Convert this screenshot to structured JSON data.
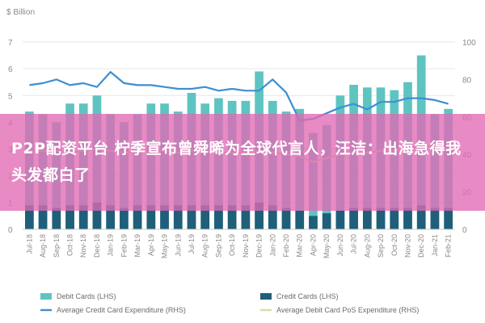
{
  "chart_data": {
    "type": "bar",
    "unit_label": "$ Billion",
    "y_left": {
      "lim": [
        0,
        7
      ],
      "ticks": [
        "0",
        "1",
        "2",
        "3",
        "4",
        "5",
        "6",
        "7"
      ]
    },
    "y_right": {
      "lim": [
        0,
        100
      ],
      "ticks": [
        "0",
        "20",
        "40",
        "60",
        "80",
        "100"
      ]
    },
    "categories": [
      "Jul-18",
      "Aug-18",
      "Sep-18",
      "Oct-18",
      "Nov-18",
      "Dec-18",
      "Jan-19",
      "Feb-19",
      "Mar-19",
      "Apr-19",
      "May-19",
      "Jun-19",
      "Jul-19",
      "Aug-19",
      "Sep-19",
      "Oct-19",
      "Nov-19",
      "Dec-19",
      "Jan-20",
      "Feb-20",
      "Mar-20",
      "Apr-20",
      "May-20",
      "Jun-20",
      "Jul-20",
      "Aug-20",
      "Sep-20",
      "Oct-20",
      "Nov-20",
      "Dec-20",
      "Jan-21",
      "Feb-21"
    ],
    "x_tick_labels": [
      "Jul-18",
      "Aug-18",
      "Sep-18",
      "Oct-18",
      "Nov-18",
      "Dec-18",
      "Jan-19",
      "Feb-19",
      "Mar-19",
      "Apr-19",
      "May-19",
      "Jun-19",
      "Jul-19",
      "Aug-19",
      "Sep-19",
      "Oct-19",
      "Nov-19",
      "Dec-19",
      "Jan-20",
      "Feb-20",
      "Mar-20",
      "Apr-20",
      "May-20",
      "Jun-20",
      "Jul-20",
      "Aug-20",
      "Sep-20",
      "Oct-20",
      "Nov-20",
      "Dec-20",
      "Jan-21",
      "Feb-21"
    ],
    "series": [
      {
        "name": "Debit Cards (LHS)",
        "axis": "left",
        "kind": "bar",
        "color": "#5ec4c2",
        "values": [
          4.4,
          4.3,
          4.0,
          4.7,
          4.7,
          5.0,
          4.3,
          4.0,
          4.3,
          4.7,
          4.7,
          4.4,
          5.1,
          4.7,
          4.9,
          4.8,
          4.8,
          5.9,
          4.8,
          4.4,
          4.5,
          3.6,
          3.9,
          5.0,
          5.4,
          5.3,
          5.3,
          5.2,
          5.5,
          6.5,
          4.3,
          4.5
        ]
      },
      {
        "name": "Credit Cards (LHS)",
        "axis": "left",
        "kind": "bar",
        "color": "#1f5f7a",
        "values": [
          0.9,
          0.9,
          0.8,
          0.9,
          0.9,
          1.0,
          0.9,
          0.8,
          0.9,
          0.9,
          0.9,
          0.9,
          0.9,
          0.9,
          0.9,
          0.9,
          0.9,
          1.0,
          0.9,
          0.8,
          0.7,
          0.5,
          0.6,
          0.7,
          0.8,
          0.8,
          0.8,
          0.8,
          0.8,
          0.9,
          0.8,
          0.8
        ]
      },
      {
        "name": "Average Credit Card Expenditure (RHS)",
        "axis": "right",
        "kind": "line",
        "color": "#3d8fd1",
        "values": [
          77,
          78,
          80,
          77,
          78,
          76,
          84,
          78,
          77,
          77,
          76,
          75,
          75,
          76,
          74,
          75,
          74,
          74,
          80,
          73,
          58,
          59,
          62,
          65,
          67,
          64,
          68,
          68,
          70,
          70,
          69,
          67
        ]
      },
      {
        "name": "Average Debit Card PoS Expenditure (RHS)",
        "axis": "right",
        "kind": "line",
        "color": "#cfe0a6",
        "values": [
          42,
          42,
          42,
          41,
          42,
          43,
          42,
          41,
          41,
          42,
          42,
          41,
          42,
          42,
          41,
          41,
          41,
          42,
          41,
          40,
          39,
          36,
          38,
          40,
          41,
          41,
          42,
          42,
          43,
          45,
          44,
          43
        ]
      }
    ]
  },
  "banner": {
    "text": "P2P配资平台 柠季宣布曾舜晞为全球代言人，汪洁：出海急得我头发都白了"
  }
}
